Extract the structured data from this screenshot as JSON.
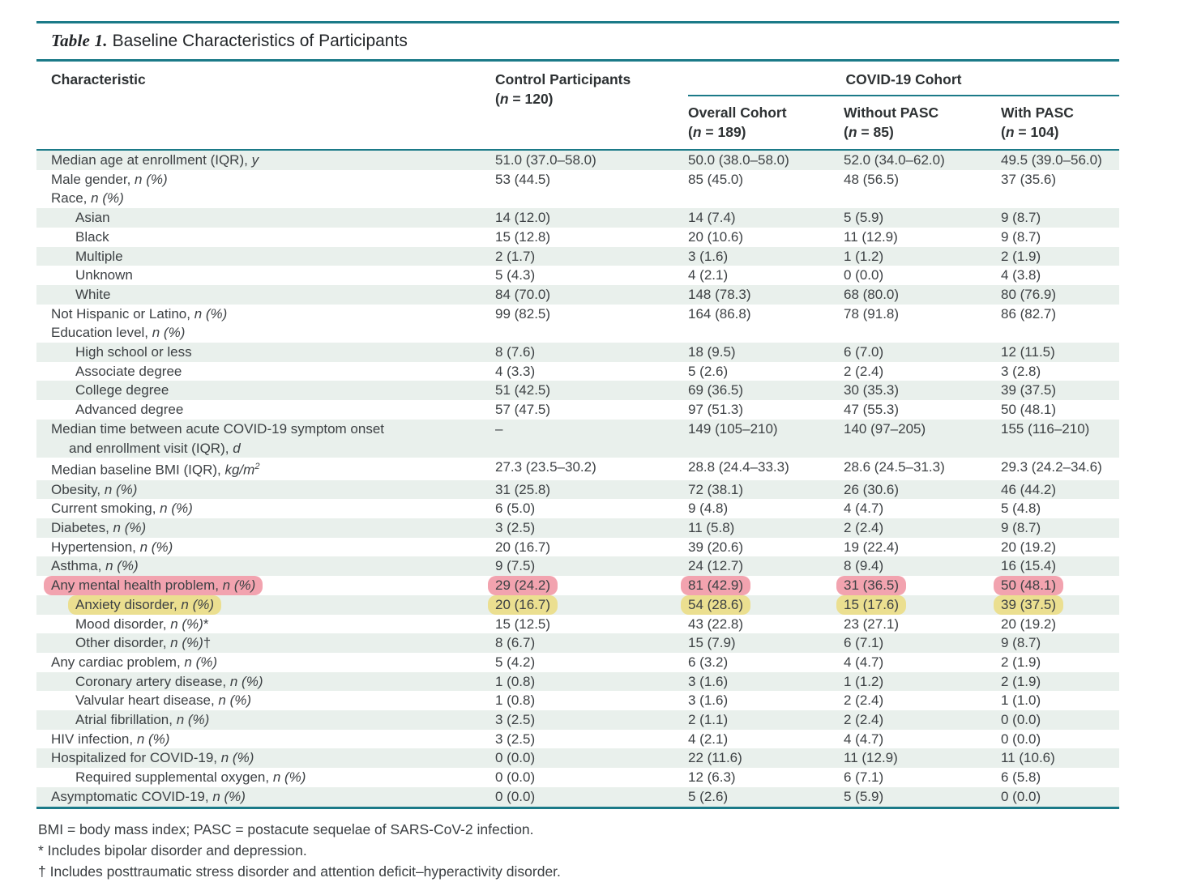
{
  "colors": {
    "teal": "#1b7a88",
    "band": "#e9f0ec",
    "highlight_pink": "#f2a3af",
    "highlight_yellow": "#ebdf90",
    "text": "#3d4144"
  },
  "table": {
    "title_label": "Table 1.",
    "title_text": "Baseline Characteristics of Participants",
    "col_characteristic": "Characteristic",
    "control_header": {
      "title": "Control Participants",
      "n_line": [
        [
          "(",
          "r"
        ],
        [
          "n",
          "i"
        ],
        [
          " = 120)",
          "r"
        ]
      ]
    },
    "covid_header": "COVID-19 Cohort",
    "covid_subcols": [
      {
        "title": "Overall Cohort",
        "n_line": [
          [
            "(",
            "r"
          ],
          [
            "n",
            "i"
          ],
          [
            " = 189)",
            "r"
          ]
        ]
      },
      {
        "title": "Without PASC",
        "n_line": [
          [
            "(",
            "r"
          ],
          [
            "n",
            "i"
          ],
          [
            " = 85)",
            "r"
          ]
        ]
      },
      {
        "title": "With PASC",
        "n_line": [
          [
            "(",
            "r"
          ],
          [
            "n",
            "i"
          ],
          [
            " = 104)",
            "r"
          ]
        ]
      }
    ],
    "rows": [
      {
        "label": [
          [
            "Median age at enrollment (IQR), ",
            "r"
          ],
          [
            "y",
            "i"
          ]
        ],
        "indent": 0,
        "shaded": true,
        "values": [
          "51.0 (37.0–58.0)",
          "50.0 (38.0–58.0)",
          "52.0 (34.0–62.0)",
          "49.5 (39.0–56.0)"
        ],
        "highlight": null
      },
      {
        "label": [
          [
            "Male gender, ",
            "r"
          ],
          [
            "n (%)",
            "i"
          ]
        ],
        "indent": 0,
        "shaded": false,
        "values": [
          "53 (44.5)",
          "85 (45.0)",
          "48 (56.5)",
          "37 (35.6)"
        ],
        "highlight": null
      },
      {
        "label": [
          [
            "Race, ",
            "r"
          ],
          [
            "n (%)",
            "i"
          ]
        ],
        "indent": 0,
        "shaded": false,
        "values": [
          "",
          "",
          "",
          ""
        ],
        "highlight": null
      },
      {
        "label": [
          [
            "Asian",
            "r"
          ]
        ],
        "indent": 1,
        "shaded": true,
        "values": [
          "14 (12.0)",
          "14 (7.4)",
          "5 (5.9)",
          "9 (8.7)"
        ],
        "highlight": null
      },
      {
        "label": [
          [
            "Black",
            "r"
          ]
        ],
        "indent": 1,
        "shaded": false,
        "values": [
          "15 (12.8)",
          "20 (10.6)",
          "11 (12.9)",
          "9 (8.7)"
        ],
        "highlight": null
      },
      {
        "label": [
          [
            "Multiple",
            "r"
          ]
        ],
        "indent": 1,
        "shaded": true,
        "values": [
          "2 (1.7)",
          "3 (1.6)",
          "1 (1.2)",
          "2 (1.9)"
        ],
        "highlight": null
      },
      {
        "label": [
          [
            "Unknown",
            "r"
          ]
        ],
        "indent": 1,
        "shaded": false,
        "values": [
          "5 (4.3)",
          "4 (2.1)",
          "0 (0.0)",
          "4 (3.8)"
        ],
        "highlight": null
      },
      {
        "label": [
          [
            "White",
            "r"
          ]
        ],
        "indent": 1,
        "shaded": true,
        "values": [
          "84 (70.0)",
          "148 (78.3)",
          "68 (80.0)",
          "80 (76.9)"
        ],
        "highlight": null
      },
      {
        "label": [
          [
            "Not Hispanic or Latino, ",
            "r"
          ],
          [
            "n (%)",
            "i"
          ]
        ],
        "indent": 0,
        "shaded": false,
        "values": [
          "99 (82.5)",
          "164 (86.8)",
          "78 (91.8)",
          "86 (82.7)"
        ],
        "highlight": null
      },
      {
        "label": [
          [
            "Education level, ",
            "r"
          ],
          [
            "n (%)",
            "i"
          ]
        ],
        "indent": 0,
        "shaded": false,
        "values": [
          "",
          "",
          "",
          ""
        ],
        "highlight": null
      },
      {
        "label": [
          [
            "High school or less",
            "r"
          ]
        ],
        "indent": 1,
        "shaded": true,
        "values": [
          "8 (7.6)",
          "18 (9.5)",
          "6 (7.0)",
          "12 (11.5)"
        ],
        "highlight": null
      },
      {
        "label": [
          [
            "Associate degree",
            "r"
          ]
        ],
        "indent": 1,
        "shaded": false,
        "values": [
          "4 (3.3)",
          "5 (2.6)",
          "2 (2.4)",
          "3 (2.8)"
        ],
        "highlight": null
      },
      {
        "label": [
          [
            "College degree",
            "r"
          ]
        ],
        "indent": 1,
        "shaded": true,
        "values": [
          "51 (42.5)",
          "69 (36.5)",
          "30 (35.3)",
          "39 (37.5)"
        ],
        "highlight": null
      },
      {
        "label": [
          [
            "Advanced degree",
            "r"
          ]
        ],
        "indent": 1,
        "shaded": false,
        "values": [
          "57 (47.5)",
          "97 (51.3)",
          "47 (55.3)",
          "50 (48.1)"
        ],
        "highlight": null
      },
      {
        "label": [
          [
            "Median time between acute COVID-19 symptom onset",
            "r"
          ]
        ],
        "label2": [
          [
            "and enrollment visit (IQR), ",
            "r"
          ],
          [
            "d",
            "i"
          ]
        ],
        "indent": 0,
        "shaded": true,
        "values": [
          "–",
          "149 (105–210)",
          "140 (97–205)",
          "155 (116–210)"
        ],
        "highlight": null
      },
      {
        "label": [
          [
            "Median baseline BMI (IQR), ",
            "r"
          ],
          [
            "kg/m",
            "i"
          ],
          [
            "2",
            "sup"
          ]
        ],
        "indent": 0,
        "shaded": false,
        "values": [
          "27.3 (23.5–30.2)",
          "28.8 (24.4–33.3)",
          "28.6 (24.5–31.3)",
          "29.3 (24.2–34.6)"
        ],
        "highlight": null
      },
      {
        "label": [
          [
            "Obesity, ",
            "r"
          ],
          [
            "n (%)",
            "i"
          ]
        ],
        "indent": 0,
        "shaded": true,
        "values": [
          "31 (25.8)",
          "72 (38.1)",
          "26 (30.6)",
          "46 (44.2)"
        ],
        "highlight": null
      },
      {
        "label": [
          [
            "Current smoking, ",
            "r"
          ],
          [
            "n (%)",
            "i"
          ]
        ],
        "indent": 0,
        "shaded": false,
        "values": [
          "6 (5.0)",
          "9 (4.8)",
          "4 (4.7)",
          "5 (4.8)"
        ],
        "highlight": null
      },
      {
        "label": [
          [
            "Diabetes, ",
            "r"
          ],
          [
            "n (%)",
            "i"
          ]
        ],
        "indent": 0,
        "shaded": true,
        "values": [
          "3 (2.5)",
          "11 (5.8)",
          "2 (2.4)",
          "9 (8.7)"
        ],
        "highlight": null
      },
      {
        "label": [
          [
            "Hypertension, ",
            "r"
          ],
          [
            "n (%)",
            "i"
          ]
        ],
        "indent": 0,
        "shaded": false,
        "values": [
          "20 (16.7)",
          "39 (20.6)",
          "19 (22.4)",
          "20 (19.2)"
        ],
        "highlight": null
      },
      {
        "label": [
          [
            "Asthma, ",
            "r"
          ],
          [
            "n (%)",
            "i"
          ]
        ],
        "indent": 0,
        "shaded": true,
        "values": [
          "9 (7.5)",
          "24 (12.7)",
          "8 (9.4)",
          "16 (15.4)"
        ],
        "highlight": null
      },
      {
        "label": [
          [
            "Any mental health problem, ",
            "r"
          ],
          [
            "n (%)",
            "i"
          ]
        ],
        "indent": 0,
        "shaded": false,
        "values": [
          "29 (24.2)",
          "81 (42.9)",
          "31 (36.5)",
          "50 (48.1)"
        ],
        "highlight": "pink"
      },
      {
        "label": [
          [
            "Anxiety disorder, ",
            "r"
          ],
          [
            "n (%)",
            "i"
          ]
        ],
        "indent": 1,
        "shaded": true,
        "values": [
          "20 (16.7)",
          "54 (28.6)",
          "15 (17.6)",
          "39 (37.5)"
        ],
        "highlight": "yellow"
      },
      {
        "label": [
          [
            "Mood disorder, ",
            "r"
          ],
          [
            "n (%)",
            "i"
          ],
          [
            "*",
            "r"
          ]
        ],
        "indent": 1,
        "shaded": false,
        "values": [
          "15 (12.5)",
          "43 (22.8)",
          "23 (27.1)",
          "20 (19.2)"
        ],
        "highlight": null
      },
      {
        "label": [
          [
            "Other disorder, ",
            "r"
          ],
          [
            "n (%)",
            "i"
          ],
          [
            "†",
            "r"
          ]
        ],
        "indent": 1,
        "shaded": true,
        "values": [
          "8 (6.7)",
          "15 (7.9)",
          "6 (7.1)",
          "9 (8.7)"
        ],
        "highlight": null
      },
      {
        "label": [
          [
            "Any cardiac problem, ",
            "r"
          ],
          [
            "n (%)",
            "i"
          ]
        ],
        "indent": 0,
        "shaded": false,
        "values": [
          "5 (4.2)",
          "6 (3.2)",
          "4 (4.7)",
          "2 (1.9)"
        ],
        "highlight": null
      },
      {
        "label": [
          [
            "Coronary artery disease, ",
            "r"
          ],
          [
            "n (%)",
            "i"
          ]
        ],
        "indent": 1,
        "shaded": true,
        "values": [
          "1 (0.8)",
          "3 (1.6)",
          "1 (1.2)",
          "2 (1.9)"
        ],
        "highlight": null
      },
      {
        "label": [
          [
            "Valvular heart disease, ",
            "r"
          ],
          [
            "n (%)",
            "i"
          ]
        ],
        "indent": 1,
        "shaded": false,
        "values": [
          "1 (0.8)",
          "3 (1.6)",
          "2 (2.4)",
          "1 (1.0)"
        ],
        "highlight": null
      },
      {
        "label": [
          [
            "Atrial fibrillation, ",
            "r"
          ],
          [
            "n (%)",
            "i"
          ]
        ],
        "indent": 1,
        "shaded": true,
        "values": [
          "3 (2.5)",
          "2 (1.1)",
          "2 (2.4)",
          "0 (0.0)"
        ],
        "highlight": null
      },
      {
        "label": [
          [
            "HIV infection, ",
            "r"
          ],
          [
            "n (%)",
            "i"
          ]
        ],
        "indent": 0,
        "shaded": false,
        "values": [
          "3 (2.5)",
          "4 (2.1)",
          "4 (4.7)",
          "0 (0.0)"
        ],
        "highlight": null
      },
      {
        "label": [
          [
            "Hospitalized for COVID-19, ",
            "r"
          ],
          [
            "n (%)",
            "i"
          ]
        ],
        "indent": 0,
        "shaded": true,
        "values": [
          "0 (0.0)",
          "22 (11.6)",
          "11 (12.9)",
          "11 (10.6)"
        ],
        "highlight": null
      },
      {
        "label": [
          [
            "Required supplemental oxygen, ",
            "r"
          ],
          [
            "n (%)",
            "i"
          ]
        ],
        "indent": 1,
        "shaded": false,
        "values": [
          "0 (0.0)",
          "12 (6.3)",
          "6 (7.1)",
          "6 (5.8)"
        ],
        "highlight": null
      },
      {
        "label": [
          [
            "Asymptomatic COVID-19, ",
            "r"
          ],
          [
            "n (%)",
            "i"
          ]
        ],
        "indent": 0,
        "shaded": true,
        "values": [
          "0 (0.0)",
          "5 (2.6)",
          "5 (5.9)",
          "0 (0.0)"
        ],
        "highlight": null
      }
    ],
    "footnotes": [
      "BMI = body mass index; PASC = postacute sequelae of SARS-CoV-2 infection.",
      "* Includes bipolar disorder and depression.",
      "† Includes posttraumatic stress disorder and attention deficit–hyperactivity disorder."
    ]
  }
}
